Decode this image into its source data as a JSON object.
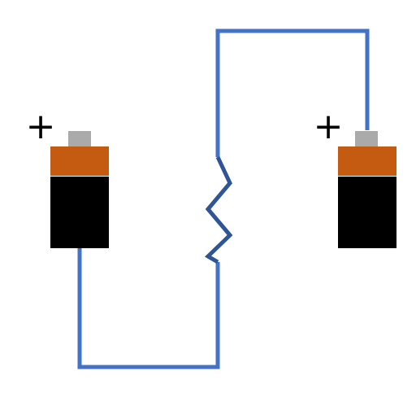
{
  "diagram": {
    "colors": {
      "background": "#ffffff",
      "wire": "#4472c4",
      "resistor": "#2f5597",
      "battery_body": "#000000",
      "battery_band": "#c55a11",
      "battery_terminal": "#aaaaaa",
      "plus_sign": "#000000"
    },
    "components": {
      "battery_left": {
        "polarity_label": "+"
      },
      "battery_right": {
        "polarity_label": "+"
      },
      "resistor": {
        "icon": "zigzag-resistor"
      }
    }
  }
}
